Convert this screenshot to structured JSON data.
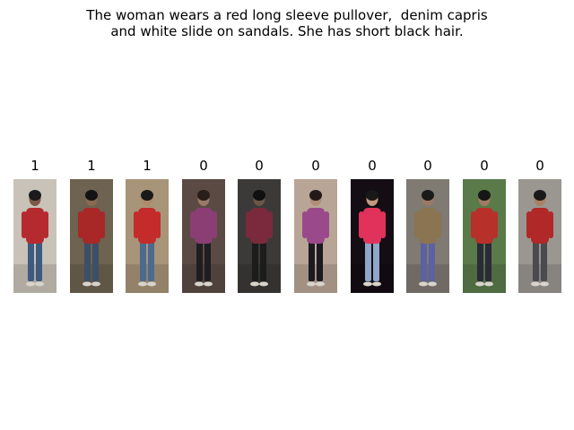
{
  "caption": {
    "line1": "The woman wears a red long sleeve pullover,  denim capris",
    "line2": "and white slide on sandals. She has short black hair."
  },
  "gallery": [
    {
      "label": "1",
      "bg": "#c9c2b8",
      "top": "#b52a2e",
      "bottom": "#3d5a80",
      "skin": "#7a5a48",
      "hair": "#1b1b1b"
    },
    {
      "label": "1",
      "bg": "#6e6250",
      "top": "#a82727",
      "bottom": "#3c4f68",
      "skin": "#8a6a52",
      "hair": "#141414"
    },
    {
      "label": "1",
      "bg": "#a89478",
      "top": "#c42b2b",
      "bottom": "#4b6a90",
      "skin": "#b08a6e",
      "hair": "#1a1a1a"
    },
    {
      "label": "0",
      "bg": "#5b4a44",
      "top": "#8a3e73",
      "bottom": "#1e1e22",
      "skin": "#9a7a66",
      "hair": "#2a1e1a"
    },
    {
      "label": "0",
      "bg": "#3c3a38",
      "top": "#7a2a3c",
      "bottom": "#1c1c1c",
      "skin": "#6a5648",
      "hair": "#101010"
    },
    {
      "label": "0",
      "bg": "#b9a596",
      "top": "#9a4a8a",
      "bottom": "#1a1a20",
      "skin": "#b08e78",
      "hair": "#231a18"
    },
    {
      "label": "0",
      "bg": "#140d14",
      "top": "#e0325a",
      "bottom": "#8ea6c8",
      "skin": "#c29a80",
      "hair": "#181818"
    },
    {
      "label": "0",
      "bg": "#7f7a72",
      "top": "#8a7452",
      "bottom": "#5a62a2",
      "skin": "#9a7a64",
      "hair": "#1a1a1a"
    },
    {
      "label": "0",
      "bg": "#5a7a4a",
      "top": "#b8302a",
      "bottom": "#2a2a38",
      "skin": "#a07a62",
      "hair": "#161616"
    },
    {
      "label": "0",
      "bg": "#9a9690",
      "top": "#b02828",
      "bottom": "#4a4a50",
      "skin": "#a88268",
      "hair": "#1a1a1a"
    }
  ]
}
